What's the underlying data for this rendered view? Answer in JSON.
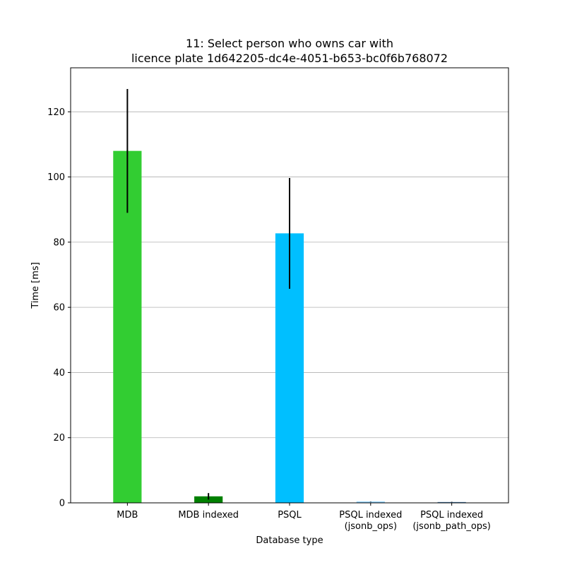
{
  "chart_data": {
    "type": "bar",
    "title_lines": [
      "11: Select person who owns car with",
      "licence plate 1d642205-dc4e-4051-b653-bc0f6b768072"
    ],
    "xlabel": "Database type",
    "ylabel": "Time [ms]",
    "categories": [
      [
        "MDB"
      ],
      [
        "MDB indexed"
      ],
      [
        "PSQL"
      ],
      [
        "PSQL indexed",
        "(jsonb_ops)"
      ],
      [
        "PSQL indexed",
        "(jsonb_path_ops)"
      ]
    ],
    "values": [
      108.0,
      2.0,
      82.7,
      0.4,
      0.25
    ],
    "errors": [
      19.0,
      1.0,
      17.0,
      0.05,
      0.05
    ],
    "colors": [
      "#32cd32",
      "#008000",
      "#00bfff",
      "#87cefa",
      "#4682b4"
    ],
    "ylim": [
      0,
      133.5
    ],
    "yticks": [
      0,
      20,
      40,
      60,
      80,
      100,
      120
    ],
    "grid": "y"
  }
}
